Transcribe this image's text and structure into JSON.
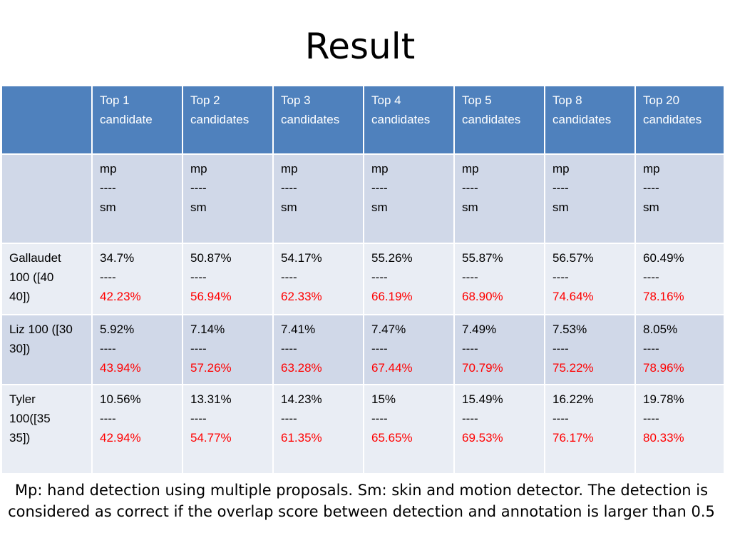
{
  "title": "Result",
  "table": {
    "headers": [
      {
        "l1": "",
        "l2": ""
      },
      {
        "l1": "Top 1",
        "l2": "candidate"
      },
      {
        "l1": "Top 2",
        "l2": "candidates"
      },
      {
        "l1": "Top 3",
        "l2": "candidates"
      },
      {
        "l1": "Top 4",
        "l2": "candidates"
      },
      {
        "l1": "Top 5",
        "l2": "candidates"
      },
      {
        "l1": "Top 8",
        "l2": "candidates"
      },
      {
        "l1": "Top 20",
        "l2": "candidates"
      }
    ],
    "legend_row": {
      "label": "",
      "cells": [
        {
          "mp": "mp",
          "sep": "----",
          "sm": "sm"
        },
        {
          "mp": "mp",
          "sep": "----",
          "sm": "sm"
        },
        {
          "mp": "mp",
          "sep": "----",
          "sm": "sm"
        },
        {
          "mp": "mp",
          "sep": "----",
          "sm": "sm"
        },
        {
          "mp": "mp",
          "sep": "----",
          "sm": "sm"
        },
        {
          "mp": "mp",
          "sep": "----",
          "sm": "sm"
        },
        {
          "mp": "mp",
          "sep": "----",
          "sm": "sm"
        }
      ]
    },
    "rows": [
      {
        "label_l1": "Gallaudet",
        "label_l2": "100 ([40",
        "label_l3": "40])",
        "cells": [
          {
            "mp": "34.7%",
            "sep": "----",
            "sm": "42.23%"
          },
          {
            "mp": "50.87%",
            "sep": "----",
            "sm": "56.94%"
          },
          {
            "mp": "54.17%",
            "sep": "----",
            "sm": "62.33%"
          },
          {
            "mp": "55.26%",
            "sep": "----",
            "sm": "66.19%"
          },
          {
            "mp": "55.87%",
            "sep": "----",
            "sm": "68.90%"
          },
          {
            "mp": "56.57%",
            "sep": "----",
            "sm": "74.64%"
          },
          {
            "mp": "60.49%",
            "sep": "----",
            "sm": "78.16%"
          }
        ]
      },
      {
        "label_l1": "Liz 100 ([30",
        "label_l2": "30])",
        "label_l3": "",
        "cells": [
          {
            "mp": "5.92%",
            "sep": "----",
            "sm": "43.94%"
          },
          {
            "mp": "7.14%",
            "sep": "----",
            "sm": "57.26%"
          },
          {
            "mp": "7.41%",
            "sep": "----",
            "sm": "63.28%"
          },
          {
            "mp": "7.47%",
            "sep": "----",
            "sm": "67.44%"
          },
          {
            "mp": "7.49%",
            "sep": "----",
            "sm": "70.79%"
          },
          {
            "mp": "7.53%",
            "sep": "----",
            "sm": "75.22%"
          },
          {
            "mp": "8.05%",
            "sep": "----",
            "sm": "78.96%"
          }
        ]
      },
      {
        "label_l1": "Tyler",
        "label_l2": "100([35",
        "label_l3": "35])",
        "cells": [
          {
            "mp": "10.56%",
            "sep": "----",
            "sm": "42.94%"
          },
          {
            "mp": "13.31%",
            "sep": "----",
            "sm": "54.77%"
          },
          {
            "mp": "14.23%",
            "sep": "----",
            "sm": "61.35%"
          },
          {
            "mp": "15%",
            "sep": "----",
            "sm": "65.65%"
          },
          {
            "mp": "15.49%",
            "sep": "----",
            "sm": "69.53%"
          },
          {
            "mp": "16.22%",
            "sep": "----",
            "sm": "76.17%"
          },
          {
            "mp": "19.78%",
            "sep": "----",
            "sm": "80.33%"
          }
        ]
      }
    ]
  },
  "caption": "Mp: hand detection using multiple proposals. Sm: skin and motion detector. The detection is considered as correct if the overlap score between detection and annotation is larger than 0.5",
  "colors": {
    "header_bg": "#4f81bd",
    "row_dark": "#d0d8e8",
    "row_light": "#e9edf4",
    "sm_value": "#ff0000"
  }
}
